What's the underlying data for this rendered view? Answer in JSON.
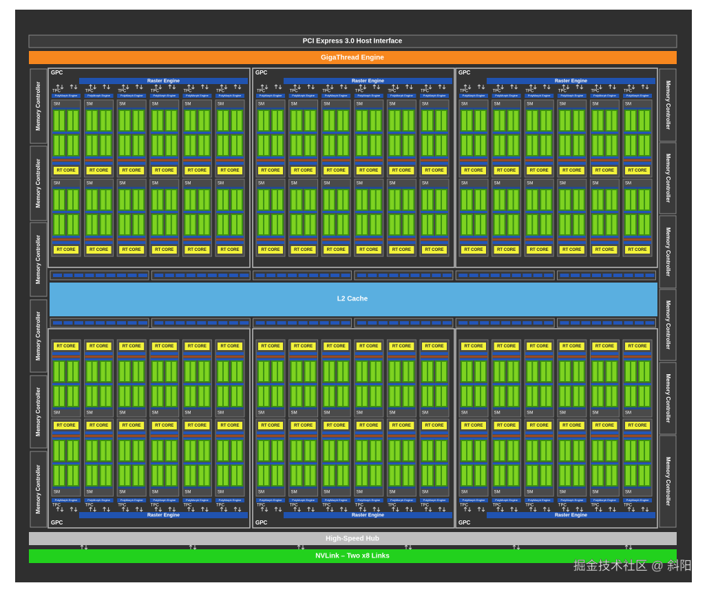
{
  "header": {
    "pci": "PCI Express 3.0 Host Interface",
    "gigathread": "GigaThread Engine"
  },
  "memory_controllers": {
    "left": [
      "Memory Controller",
      "Memory Controller",
      "Memory Controller",
      "Memory Controller",
      "Memory Controller",
      "Memory Controller"
    ],
    "right": [
      "Memory Controller",
      "Memory Controller",
      "Memory Controller",
      "Memory Controller",
      "Memory Controller",
      "Memory Controller"
    ]
  },
  "l2_cache": "L2 Cache",
  "gpcs": [
    {
      "label": "GPC",
      "raster_engine": "Raster Engine",
      "tpcs": [
        {
          "label": "TPC",
          "polymorph": "PolyMorph Engine",
          "sms": [
            {
              "label": "SM",
              "rt_core": "RT CORE"
            },
            {
              "label": "SM",
              "rt_core": "RT CORE"
            }
          ]
        },
        {
          "label": "TPC",
          "polymorph": "PolyMorph Engine",
          "sms": [
            {
              "label": "SM",
              "rt_core": "RT CORE"
            },
            {
              "label": "SM",
              "rt_core": "RT CORE"
            }
          ]
        },
        {
          "label": "TPC",
          "polymorph": "PolyMorph Engine",
          "sms": [
            {
              "label": "SM",
              "rt_core": "RT CORE"
            },
            {
              "label": "SM",
              "rt_core": "RT CORE"
            }
          ]
        },
        {
          "label": "TPC",
          "polymorph": "PolyMorph Engine",
          "sms": [
            {
              "label": "SM",
              "rt_core": "RT CORE"
            },
            {
              "label": "SM",
              "rt_core": "RT CORE"
            }
          ]
        },
        {
          "label": "TPC",
          "polymorph": "PolyMorph Engine",
          "sms": [
            {
              "label": "SM",
              "rt_core": "RT CORE"
            },
            {
              "label": "SM",
              "rt_core": "RT CORE"
            }
          ]
        },
        {
          "label": "TPC",
          "polymorph": "PolyMorph Engine",
          "sms": [
            {
              "label": "SM",
              "rt_core": "RT CORE"
            },
            {
              "label": "SM",
              "rt_core": "RT CORE"
            }
          ]
        }
      ]
    },
    {
      "label": "GPC",
      "raster_engine": "Raster Engine",
      "tpcs": [
        {
          "label": "TPC",
          "polymorph": "PolyMorph Engine",
          "sms": [
            {
              "label": "SM",
              "rt_core": "RT CORE"
            },
            {
              "label": "SM",
              "rt_core": "RT CORE"
            }
          ]
        },
        {
          "label": "TPC",
          "polymorph": "PolyMorph Engine",
          "sms": [
            {
              "label": "SM",
              "rt_core": "RT CORE"
            },
            {
              "label": "SM",
              "rt_core": "RT CORE"
            }
          ]
        },
        {
          "label": "TPC",
          "polymorph": "PolyMorph Engine",
          "sms": [
            {
              "label": "SM",
              "rt_core": "RT CORE"
            },
            {
              "label": "SM",
              "rt_core": "RT CORE"
            }
          ]
        },
        {
          "label": "TPC",
          "polymorph": "PolyMorph Engine",
          "sms": [
            {
              "label": "SM",
              "rt_core": "RT CORE"
            },
            {
              "label": "SM",
              "rt_core": "RT CORE"
            }
          ]
        },
        {
          "label": "TPC",
          "polymorph": "PolyMorph Engine",
          "sms": [
            {
              "label": "SM",
              "rt_core": "RT CORE"
            },
            {
              "label": "SM",
              "rt_core": "RT CORE"
            }
          ]
        },
        {
          "label": "TPC",
          "polymorph": "PolyMorph Engine",
          "sms": [
            {
              "label": "SM",
              "rt_core": "RT CORE"
            },
            {
              "label": "SM",
              "rt_core": "RT CORE"
            }
          ]
        }
      ]
    },
    {
      "label": "GPC",
      "raster_engine": "Raster Engine",
      "tpcs": [
        {
          "label": "TPC",
          "polymorph": "PolyMorph Engine",
          "sms": [
            {
              "label": "SM",
              "rt_core": "RT CORE"
            },
            {
              "label": "SM",
              "rt_core": "RT CORE"
            }
          ]
        },
        {
          "label": "TPC",
          "polymorph": "PolyMorph Engine",
          "sms": [
            {
              "label": "SM",
              "rt_core": "RT CORE"
            },
            {
              "label": "SM",
              "rt_core": "RT CORE"
            }
          ]
        },
        {
          "label": "TPC",
          "polymorph": "PolyMorph Engine",
          "sms": [
            {
              "label": "SM",
              "rt_core": "RT CORE"
            },
            {
              "label": "SM",
              "rt_core": "RT CORE"
            }
          ]
        },
        {
          "label": "TPC",
          "polymorph": "PolyMorph Engine",
          "sms": [
            {
              "label": "SM",
              "rt_core": "RT CORE"
            },
            {
              "label": "SM",
              "rt_core": "RT CORE"
            }
          ]
        },
        {
          "label": "TPC",
          "polymorph": "PolyMorph Engine",
          "sms": [
            {
              "label": "SM",
              "rt_core": "RT CORE"
            },
            {
              "label": "SM",
              "rt_core": "RT CORE"
            }
          ]
        },
        {
          "label": "TPC",
          "polymorph": "PolyMorph Engine",
          "sms": [
            {
              "label": "SM",
              "rt_core": "RT CORE"
            },
            {
              "label": "SM",
              "rt_core": "RT CORE"
            }
          ]
        }
      ]
    },
    {
      "label": "GPC",
      "raster_engine": "Raster Engine",
      "tpcs": [
        {
          "label": "TPC",
          "polymorph": "PolyMorph Engine",
          "sms": [
            {
              "label": "SM",
              "rt_core": "RT CORE"
            },
            {
              "label": "SM",
              "rt_core": "RT CORE"
            }
          ]
        },
        {
          "label": "TPC",
          "polymorph": "PolyMorph Engine",
          "sms": [
            {
              "label": "SM",
              "rt_core": "RT CORE"
            },
            {
              "label": "SM",
              "rt_core": "RT CORE"
            }
          ]
        },
        {
          "label": "TPC",
          "polymorph": "PolyMorph Engine",
          "sms": [
            {
              "label": "SM",
              "rt_core": "RT CORE"
            },
            {
              "label": "SM",
              "rt_core": "RT CORE"
            }
          ]
        },
        {
          "label": "TPC",
          "polymorph": "PolyMorph Engine",
          "sms": [
            {
              "label": "SM",
              "rt_core": "RT CORE"
            },
            {
              "label": "SM",
              "rt_core": "RT CORE"
            }
          ]
        },
        {
          "label": "TPC",
          "polymorph": "PolyMorph Engine",
          "sms": [
            {
              "label": "SM",
              "rt_core": "RT CORE"
            },
            {
              "label": "SM",
              "rt_core": "RT CORE"
            }
          ]
        },
        {
          "label": "TPC",
          "polymorph": "PolyMorph Engine",
          "sms": [
            {
              "label": "SM",
              "rt_core": "RT CORE"
            },
            {
              "label": "SM",
              "rt_core": "RT CORE"
            }
          ]
        }
      ]
    },
    {
      "label": "GPC",
      "raster_engine": "Raster Engine",
      "tpcs": [
        {
          "label": "TPC",
          "polymorph": "PolyMorph Engine",
          "sms": [
            {
              "label": "SM",
              "rt_core": "RT CORE"
            },
            {
              "label": "SM",
              "rt_core": "RT CORE"
            }
          ]
        },
        {
          "label": "TPC",
          "polymorph": "PolyMorph Engine",
          "sms": [
            {
              "label": "SM",
              "rt_core": "RT CORE"
            },
            {
              "label": "SM",
              "rt_core": "RT CORE"
            }
          ]
        },
        {
          "label": "TPC",
          "polymorph": "PolyMorph Engine",
          "sms": [
            {
              "label": "SM",
              "rt_core": "RT CORE"
            },
            {
              "label": "SM",
              "rt_core": "RT CORE"
            }
          ]
        },
        {
          "label": "TPC",
          "polymorph": "PolyMorph Engine",
          "sms": [
            {
              "label": "SM",
              "rt_core": "RT CORE"
            },
            {
              "label": "SM",
              "rt_core": "RT CORE"
            }
          ]
        },
        {
          "label": "TPC",
          "polymorph": "PolyMorph Engine",
          "sms": [
            {
              "label": "SM",
              "rt_core": "RT CORE"
            },
            {
              "label": "SM",
              "rt_core": "RT CORE"
            }
          ]
        },
        {
          "label": "TPC",
          "polymorph": "PolyMorph Engine",
          "sms": [
            {
              "label": "SM",
              "rt_core": "RT CORE"
            },
            {
              "label": "SM",
              "rt_core": "RT CORE"
            }
          ]
        }
      ]
    },
    {
      "label": "GPC",
      "raster_engine": "Raster Engine",
      "tpcs": [
        {
          "label": "TPC",
          "polymorph": "PolyMorph Engine",
          "sms": [
            {
              "label": "SM",
              "rt_core": "RT CORE"
            },
            {
              "label": "SM",
              "rt_core": "RT CORE"
            }
          ]
        },
        {
          "label": "TPC",
          "polymorph": "PolyMorph Engine",
          "sms": [
            {
              "label": "SM",
              "rt_core": "RT CORE"
            },
            {
              "label": "SM",
              "rt_core": "RT CORE"
            }
          ]
        },
        {
          "label": "TPC",
          "polymorph": "PolyMorph Engine",
          "sms": [
            {
              "label": "SM",
              "rt_core": "RT CORE"
            },
            {
              "label": "SM",
              "rt_core": "RT CORE"
            }
          ]
        },
        {
          "label": "TPC",
          "polymorph": "PolyMorph Engine",
          "sms": [
            {
              "label": "SM",
              "rt_core": "RT CORE"
            },
            {
              "label": "SM",
              "rt_core": "RT CORE"
            }
          ]
        },
        {
          "label": "TPC",
          "polymorph": "PolyMorph Engine",
          "sms": [
            {
              "label": "SM",
              "rt_core": "RT CORE"
            },
            {
              "label": "SM",
              "rt_core": "RT CORE"
            }
          ]
        },
        {
          "label": "TPC",
          "polymorph": "PolyMorph Engine",
          "sms": [
            {
              "label": "SM",
              "rt_core": "RT CORE"
            },
            {
              "label": "SM",
              "rt_core": "RT CORE"
            }
          ]
        }
      ]
    }
  ],
  "high_speed_hub": "High-Speed Hub",
  "nvlink": "NVLink – Two x8 Links",
  "watermark": "掘金技术社区 @ 斜阳"
}
